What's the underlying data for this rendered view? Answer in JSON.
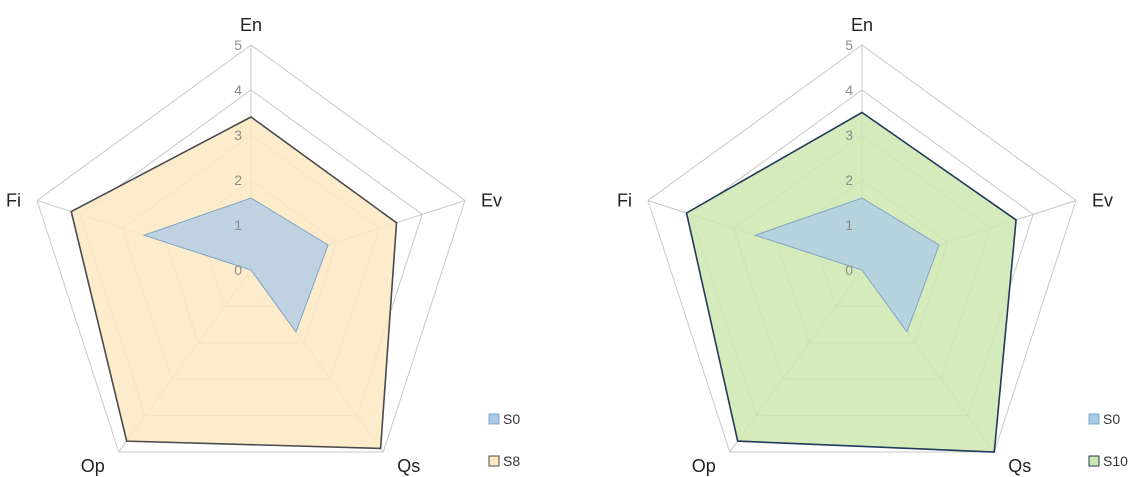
{
  "chart_data": [
    {
      "type": "radar",
      "axes": [
        "En",
        "Ev",
        "Qs",
        "Op",
        "Fi"
      ],
      "rlim": [
        0,
        5
      ],
      "ticks": [
        "0",
        "1",
        "2",
        "3",
        "4",
        "5"
      ],
      "grid": true,
      "legend_position": "bottom-right",
      "series": [
        {
          "name": "S0",
          "values": [
            1.6,
            1.8,
            1.7,
            0.0,
            2.5
          ],
          "fill": "#a9c9e8",
          "stroke": "#7fa6c4"
        },
        {
          "name": "S8",
          "values": [
            3.4,
            3.4,
            4.9,
            4.7,
            4.2
          ],
          "fill": "#fde9c2",
          "stroke": "#4a4a4a"
        }
      ]
    },
    {
      "type": "radar",
      "axes": [
        "En",
        "Ev",
        "Qs",
        "Op",
        "Fi"
      ],
      "rlim": [
        0,
        5
      ],
      "ticks": [
        "0",
        "1",
        "2",
        "3",
        "4",
        "5"
      ],
      "grid": true,
      "legend_position": "bottom-right",
      "series": [
        {
          "name": "S0",
          "values": [
            1.6,
            1.8,
            1.7,
            0.0,
            2.5
          ],
          "fill": "#a9c9e8",
          "stroke": "#7fa6c4"
        },
        {
          "name": "S10",
          "values": [
            3.5,
            3.6,
            5.0,
            4.7,
            4.1
          ],
          "fill": "#cfe8b0",
          "stroke": "#1f3a5a"
        }
      ]
    }
  ]
}
